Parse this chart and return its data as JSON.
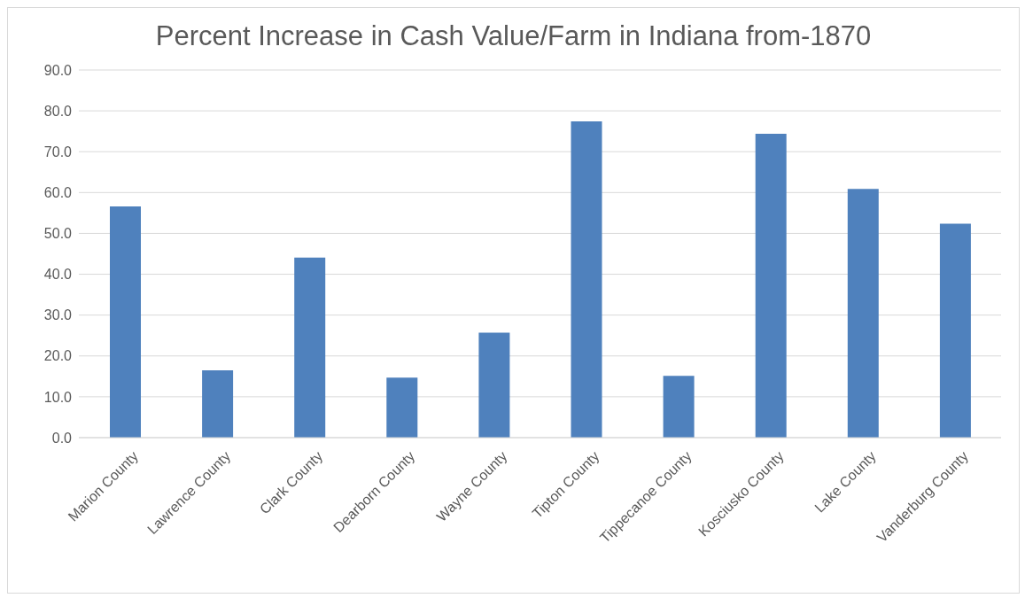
{
  "chart_data": {
    "type": "bar",
    "title": "Percent Increase in Cash Value/Farm in Indiana from-1870",
    "categories": [
      "Marion County",
      "Lawrence County",
      "Clark County",
      "Dearborn County",
      "Wayne County",
      "Tipton County",
      "Tippecanoe County",
      "Kosciusko County",
      "Lake County",
      "Vanderburg County"
    ],
    "values": [
      56.6,
      16.5,
      44.1,
      14.7,
      25.7,
      77.4,
      15.1,
      74.4,
      60.9,
      52.4
    ],
    "color": "#4f81bd",
    "ylim": [
      0,
      90
    ],
    "yticks": [
      {
        "value": 0,
        "label": "0.0"
      },
      {
        "value": 10,
        "label": "10.0"
      },
      {
        "value": 20,
        "label": "20.0"
      },
      {
        "value": 30,
        "label": "30.0"
      },
      {
        "value": 40,
        "label": "40.0"
      },
      {
        "value": 50,
        "label": "50.0"
      },
      {
        "value": 60,
        "label": "60.0"
      },
      {
        "value": 70,
        "label": "70.0"
      },
      {
        "value": 80,
        "label": "80.0"
      },
      {
        "value": 90,
        "label": "90.0"
      }
    ],
    "grid": "y"
  }
}
